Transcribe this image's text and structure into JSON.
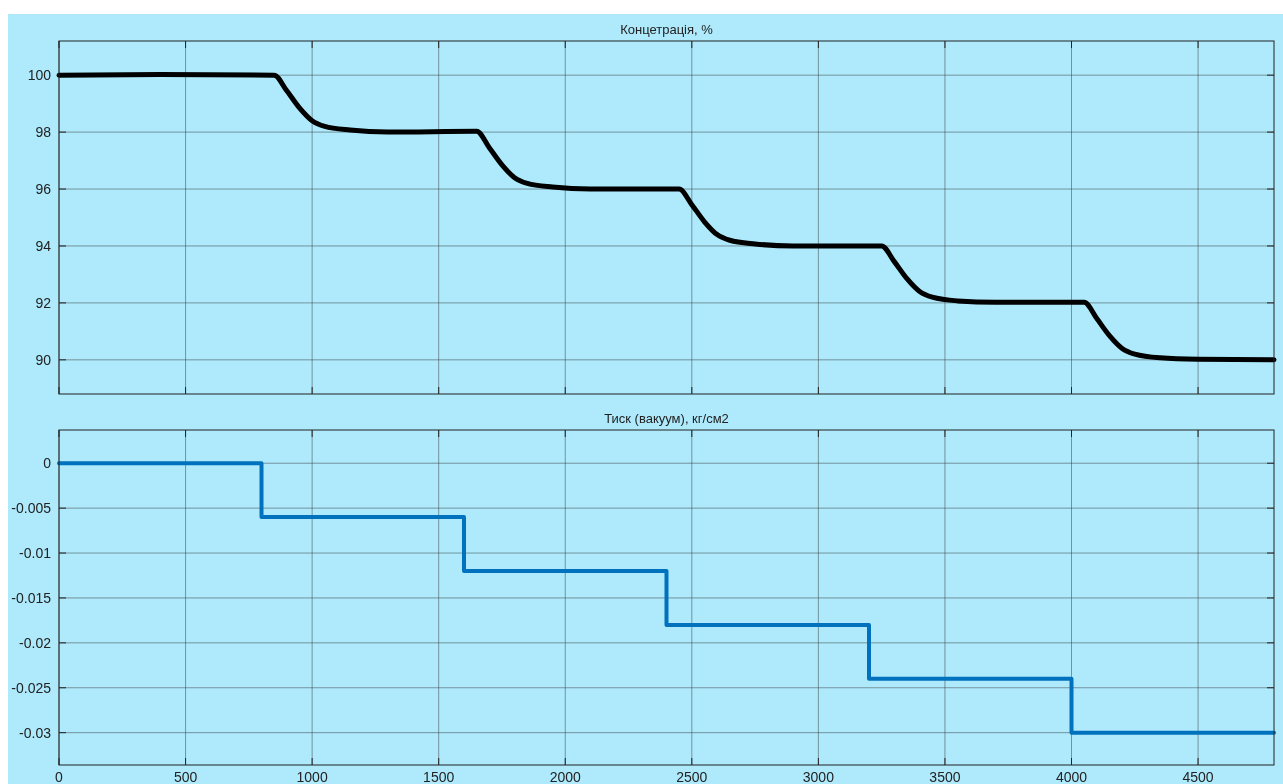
{
  "chart_data": [
    {
      "type": "line",
      "title": "Концетрація, %",
      "xlim": [
        0,
        4800
      ],
      "xticks": [
        0,
        500,
        1000,
        1500,
        2000,
        2500,
        3000,
        3500,
        4000,
        4500
      ],
      "ylim": [
        88.8,
        101.2
      ],
      "yticks": [
        90,
        92,
        94,
        96,
        98,
        100
      ],
      "grid": true,
      "tick_labels": "y",
      "x": [
        0,
        400,
        850,
        900,
        950,
        1000,
        1050,
        1150,
        1300,
        1650,
        1700,
        1750,
        1800,
        1850,
        1950,
        2100,
        2450,
        2500,
        2550,
        2600,
        2650,
        2750,
        2900,
        3250,
        3300,
        3350,
        3400,
        3450,
        3550,
        3700,
        4050,
        4100,
        4150,
        4200,
        4250,
        4350,
        4500,
        4800
      ],
      "series": [
        {
          "color": "#000000",
          "values": [
            100,
            100.02,
            100,
            99.45,
            98.85,
            98.4,
            98.2,
            98.07,
            98.0,
            98.03,
            97.45,
            96.85,
            96.4,
            96.2,
            96.07,
            96.0,
            96.0,
            95.45,
            94.85,
            94.4,
            94.2,
            94.07,
            94.0,
            94.0,
            93.45,
            92.85,
            92.4,
            92.2,
            92.07,
            92.02,
            92.02,
            91.45,
            90.85,
            90.4,
            90.2,
            90.07,
            90.02,
            90.0
          ]
        }
      ]
    },
    {
      "type": "step",
      "title": "Тиск (вакуум), кг/см2",
      "xlim": [
        0,
        4800
      ],
      "xticks": [
        0,
        500,
        1000,
        1500,
        2000,
        2500,
        3000,
        3500,
        4000,
        4500
      ],
      "ylim": [
        -0.0336,
        0.0037
      ],
      "yticks": [
        {
          "value": 0,
          "label": "0"
        },
        {
          "value": -0.005,
          "label": "-0.005"
        },
        {
          "value": -0.01,
          "label": "-0.01"
        },
        {
          "value": -0.015,
          "label": "-0.015"
        },
        {
          "value": -0.02,
          "label": "-0.02"
        },
        {
          "value": -0.025,
          "label": "-0.025"
        },
        {
          "value": -0.03,
          "label": "-0.03"
        }
      ],
      "grid": true,
      "x": [
        0,
        800,
        1600,
        2400,
        3200,
        4000,
        4800
      ],
      "series": [
        {
          "color": "#0072bd",
          "values": [
            0,
            -0.006,
            -0.012,
            -0.018,
            -0.024,
            -0.03,
            -0.03
          ]
        }
      ]
    }
  ]
}
